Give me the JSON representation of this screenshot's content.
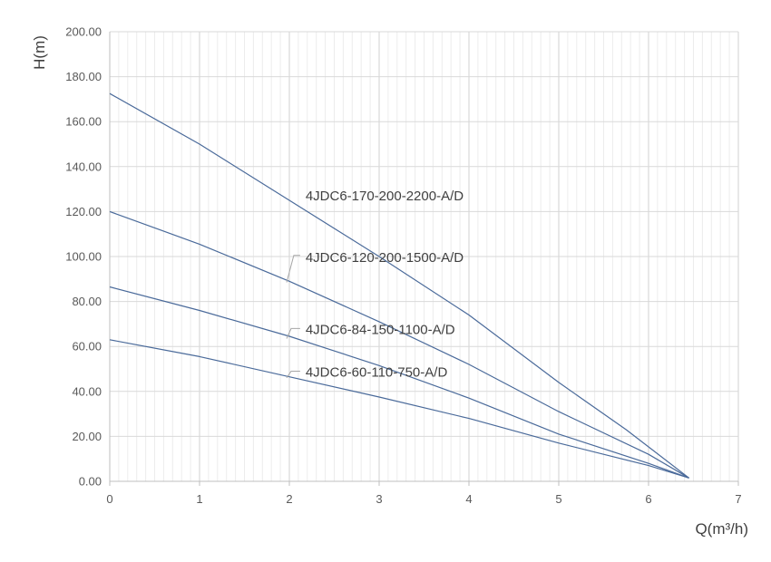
{
  "chart_data": {
    "type": "line",
    "xlabel": "Q(m³/h)",
    "ylabel": "H(m)",
    "xlim": [
      0,
      7
    ],
    "ylim": [
      0,
      200
    ],
    "x_ticks": [
      "0",
      "1",
      "2",
      "3",
      "4",
      "5",
      "6",
      "7"
    ],
    "y_ticks": [
      "0.00",
      "20.00",
      "40.00",
      "60.00",
      "80.00",
      "100.00",
      "120.00",
      "140.00",
      "160.00",
      "180.00",
      "200.00"
    ],
    "grid": true,
    "legend": "none",
    "line_color": "#4a6a9a",
    "series": [
      {
        "name": "4JDC6-170-200-2200-A/D",
        "points": [
          [
            0,
            172.5
          ],
          [
            1,
            150
          ],
          [
            2,
            125
          ],
          [
            3,
            100
          ],
          [
            4,
            74
          ],
          [
            5,
            44
          ],
          [
            5.75,
            23
          ],
          [
            6.45,
            1.5
          ]
        ]
      },
      {
        "name": "4JDC6-120-200-1500-A/D",
        "points": [
          [
            0,
            120
          ],
          [
            1,
            105.5
          ],
          [
            2,
            89
          ],
          [
            3,
            71
          ],
          [
            4,
            52
          ],
          [
            5,
            31
          ],
          [
            6,
            12
          ],
          [
            6.45,
            1.5
          ]
        ]
      },
      {
        "name": "4JDC6-84-150-1100-A/D",
        "points": [
          [
            0,
            86.5
          ],
          [
            1,
            76
          ],
          [
            2,
            64.5
          ],
          [
            3,
            51.5
          ],
          [
            4,
            37
          ],
          [
            5,
            21
          ],
          [
            6,
            8
          ],
          [
            6.45,
            1.5
          ]
        ]
      },
      {
        "name": "4JDC6-60-110-750-A/D",
        "points": [
          [
            0,
            63
          ],
          [
            1,
            55.5
          ],
          [
            2,
            46.5
          ],
          [
            3,
            37.5
          ],
          [
            4,
            28
          ],
          [
            5,
            17
          ],
          [
            6,
            7
          ],
          [
            6.45,
            1.5
          ]
        ]
      }
    ]
  }
}
